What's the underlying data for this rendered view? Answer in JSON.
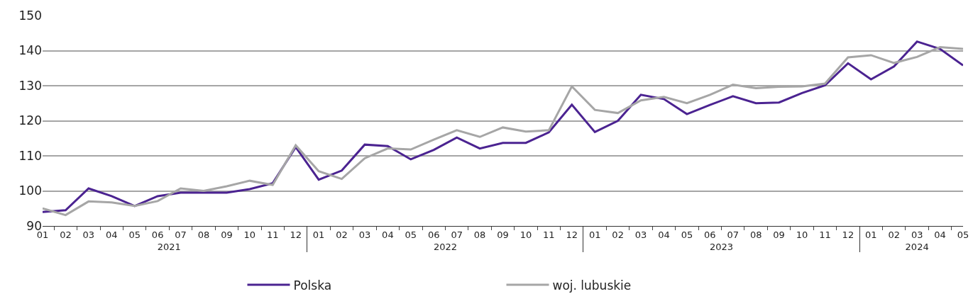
{
  "chart_data": {
    "type": "line",
    "categories": [
      "01",
      "02",
      "03",
      "04",
      "05",
      "06",
      "07",
      "08",
      "09",
      "10",
      "11",
      "12",
      "01",
      "02",
      "03",
      "04",
      "05",
      "06",
      "07",
      "08",
      "09",
      "10",
      "11",
      "12",
      "01",
      "02",
      "03",
      "04",
      "05",
      "06",
      "07",
      "08",
      "09",
      "10",
      "11",
      "12",
      "01",
      "02",
      "03",
      "04",
      "05"
    ],
    "annotations": [
      "2021",
      "2022",
      "2023",
      "2024"
    ],
    "series": [
      {
        "name": "Polska",
        "color": "#4b2391",
        "values": [
          94,
          94.5,
          100.7,
          98.5,
          95.7,
          98.5,
          99.5,
          99.5,
          99.5,
          100.5,
          102.2,
          112.5,
          103.2,
          105.8,
          113.2,
          112.8,
          109,
          111.7,
          115.2,
          112.1,
          113.7,
          113.7,
          116.7,
          124.6,
          116.8,
          120,
          127.4,
          126.2,
          121.9,
          124.5,
          127,
          125,
          125.2,
          127.9,
          130.1,
          136.4,
          131.8,
          135.5,
          142.6,
          140.5,
          135.8
        ]
      },
      {
        "name": "woj. lubuskie",
        "color": "#a6a6a6",
        "values": [
          95,
          93.1,
          97,
          96.7,
          95.7,
          97.1,
          100.7,
          100,
          101.3,
          102.9,
          101.7,
          113,
          105.6,
          103.4,
          109.3,
          112.1,
          111.8,
          114.6,
          117.3,
          115.4,
          118.1,
          116.9,
          117.3,
          129.8,
          123.1,
          122.2,
          125.8,
          126.8,
          125,
          127.4,
          130.3,
          129.3,
          129.7,
          129.8,
          130.6,
          138.1,
          138.7,
          136.5,
          138.2,
          141,
          140.5
        ]
      }
    ],
    "ylim": [
      90,
      150
    ],
    "yticks": [
      90,
      100,
      110,
      120,
      130,
      140,
      150
    ],
    "grid": "y",
    "legend": "bottom",
    "marker": "none",
    "line_style": "solid"
  }
}
